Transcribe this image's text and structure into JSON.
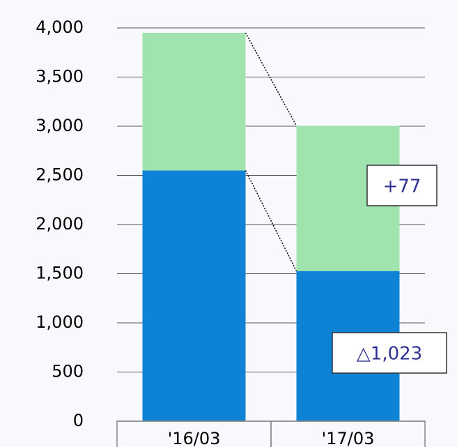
{
  "chart_data": {
    "type": "stacked_bar",
    "categories": [
      "'16/03",
      "'17/03"
    ],
    "series": [
      {
        "color": "#0e83d6",
        "values": [
          2550,
          1527
        ]
      },
      {
        "color": "#a0e3ae",
        "values": [
          1400,
          1477
        ]
      }
    ],
    "ylim": [
      0,
      4000
    ],
    "yticks": [
      0,
      {
        "value": 500,
        "label": "500"
      },
      {
        "value": 1000,
        "label": "1,000"
      },
      {
        "value": 1500,
        "label": "1,500"
      },
      {
        "value": 2000,
        "label": "2,000"
      },
      {
        "value": 2500,
        "label": "2,500"
      },
      {
        "value": 3000,
        "label": "3,000"
      },
      {
        "value": 3500,
        "label": "3,500"
      },
      {
        "value": 4000,
        "label": "4,000"
      }
    ],
    "grid": true,
    "annotations": [
      "+77",
      "△1,023"
    ]
  }
}
